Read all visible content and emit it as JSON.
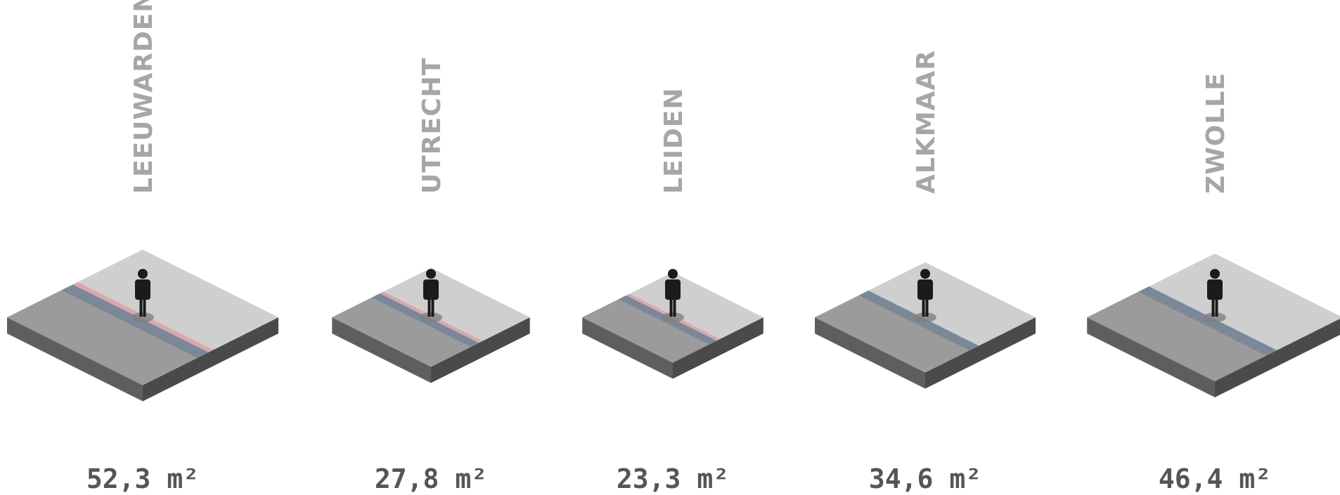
{
  "colors": {
    "slab_top_light": "#cfcfcf",
    "slab_top_dark": "#9b9b9b",
    "slab_side_left": "#5e5e5e",
    "slab_side_right": "#4a4a4a",
    "lane_blue": "#7a8898",
    "lane_pink": "#d8a8ac",
    "person": "#1b1b1b",
    "person_shadow": "#7f7f7f",
    "city_text": "#a6a6a6",
    "area_text": "#555555"
  },
  "chart_data": {
    "type": "isometric-area-comparison",
    "unit": "m²",
    "items": [
      {
        "city": "LEEUWARDEN",
        "value": 52.3,
        "value_label": "52,3",
        "pink_lane": true
      },
      {
        "city": "UTRECHT",
        "value": 27.8,
        "value_label": "27,8",
        "pink_lane": true
      },
      {
        "city": "LEIDEN",
        "value": 23.3,
        "value_label": "23,3",
        "pink_lane": true
      },
      {
        "city": "ALKMAAR",
        "value": 34.6,
        "value_label": "34,6",
        "pink_lane": false
      },
      {
        "city": "ZWOLLE",
        "value": 46.4,
        "value_label": "46,4",
        "pink_lane": false
      }
    ]
  }
}
